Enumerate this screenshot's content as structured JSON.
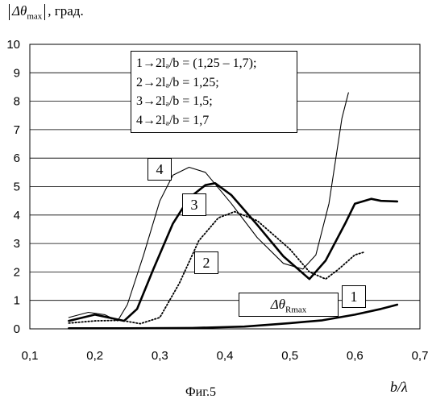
{
  "y_header": {
    "abs_bar": "|",
    "symbol": "Δθ",
    "sub": "max",
    "unit": ", град."
  },
  "x_unit": "b/λ",
  "caption": "Фиг.5",
  "legend": [
    {
      "expr": "1→2lₐ/b = (1,25 – 1,7);"
    },
    {
      "expr": "2→2lₐ/b = 1,25;"
    },
    {
      "expr": "3→2lₐ/b = 1,5;"
    },
    {
      "expr": "4→2lₐ/b = 1,7"
    }
  ],
  "curve_labels": {
    "c1": "1",
    "c2": "2",
    "c3": "3",
    "c4": "4"
  },
  "r_label": {
    "symbol": "Δθ",
    "sub": "Rmax"
  },
  "chart_data": {
    "type": "line",
    "xlim": [
      0.1,
      0.7
    ],
    "ylim": [
      0,
      10
    ],
    "x_ticks": [
      "0,1",
      "0,2",
      "0,3",
      "0,4",
      "0,5",
      "0,6",
      "0,7"
    ],
    "y_ticks": [
      "0",
      "1",
      "2",
      "3",
      "4",
      "5",
      "6",
      "7",
      "8",
      "9",
      "10"
    ],
    "grid": "horizontal",
    "legend_placement": "top-center",
    "series": [
      {
        "name": "1",
        "style": "thick",
        "points": [
          [
            0.16,
            0.02
          ],
          [
            0.25,
            0.02
          ],
          [
            0.35,
            0.03
          ],
          [
            0.43,
            0.08
          ],
          [
            0.5,
            0.2
          ],
          [
            0.55,
            0.3
          ],
          [
            0.6,
            0.5
          ],
          [
            0.64,
            0.7
          ],
          [
            0.665,
            0.85
          ]
        ]
      },
      {
        "name": "2",
        "style": "dotted",
        "points": [
          [
            0.16,
            0.2
          ],
          [
            0.2,
            0.28
          ],
          [
            0.24,
            0.3
          ],
          [
            0.27,
            0.18
          ],
          [
            0.3,
            0.4
          ],
          [
            0.33,
            1.6
          ],
          [
            0.36,
            3.1
          ],
          [
            0.39,
            3.9
          ],
          [
            0.415,
            4.12
          ],
          [
            0.45,
            3.8
          ],
          [
            0.5,
            2.8
          ],
          [
            0.53,
            2.0
          ],
          [
            0.555,
            1.75
          ],
          [
            0.575,
            2.1
          ],
          [
            0.6,
            2.6
          ],
          [
            0.615,
            2.7
          ]
        ]
      },
      {
        "name": "3",
        "style": "thick",
        "points": [
          [
            0.16,
            0.28
          ],
          [
            0.2,
            0.5
          ],
          [
            0.225,
            0.38
          ],
          [
            0.245,
            0.28
          ],
          [
            0.265,
            0.7
          ],
          [
            0.29,
            2.1
          ],
          [
            0.32,
            3.7
          ],
          [
            0.345,
            4.6
          ],
          [
            0.37,
            5.05
          ],
          [
            0.385,
            5.12
          ],
          [
            0.41,
            4.7
          ],
          [
            0.45,
            3.65
          ],
          [
            0.49,
            2.55
          ],
          [
            0.53,
            1.75
          ],
          [
            0.555,
            2.4
          ],
          [
            0.585,
            3.7
          ],
          [
            0.6,
            4.4
          ],
          [
            0.625,
            4.57
          ],
          [
            0.64,
            4.5
          ],
          [
            0.665,
            4.48
          ]
        ]
      },
      {
        "name": "4",
        "style": "thin",
        "points": [
          [
            0.16,
            0.4
          ],
          [
            0.19,
            0.58
          ],
          [
            0.215,
            0.5
          ],
          [
            0.235,
            0.28
          ],
          [
            0.25,
            0.85
          ],
          [
            0.275,
            2.6
          ],
          [
            0.3,
            4.5
          ],
          [
            0.32,
            5.4
          ],
          [
            0.345,
            5.68
          ],
          [
            0.37,
            5.5
          ],
          [
            0.41,
            4.4
          ],
          [
            0.45,
            3.2
          ],
          [
            0.49,
            2.3
          ],
          [
            0.52,
            2.1
          ],
          [
            0.54,
            2.6
          ],
          [
            0.56,
            4.4
          ],
          [
            0.58,
            7.4
          ],
          [
            0.59,
            8.3
          ]
        ]
      }
    ]
  }
}
